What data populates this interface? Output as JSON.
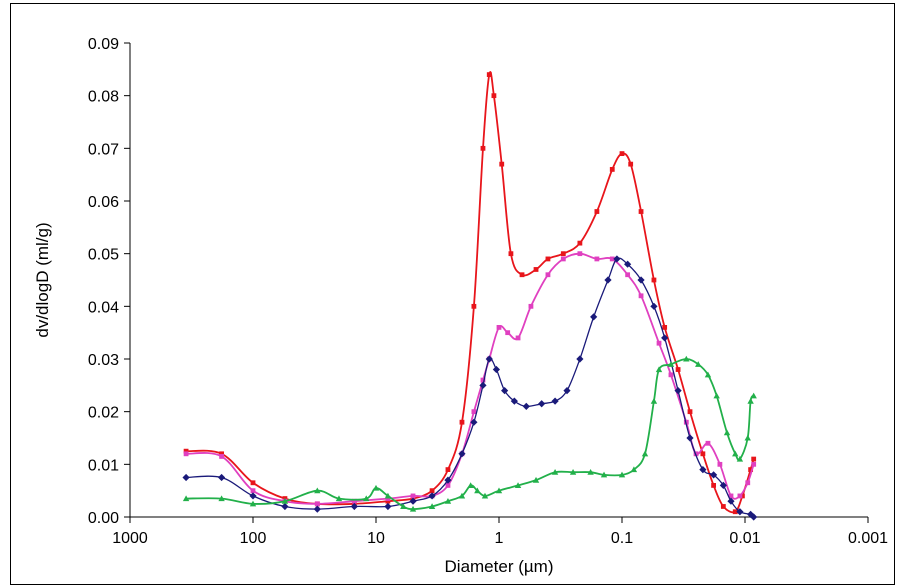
{
  "chart_data": {
    "type": "line",
    "title": "",
    "xlabel": "Diameter (µm)",
    "ylabel": "dv/dlogD (ml/g)",
    "x_scale": "log",
    "x_reversed": true,
    "xlim": [
      1000,
      0.001
    ],
    "ylim": [
      0,
      0.09
    ],
    "x_ticks": [
      1000,
      100,
      10,
      1,
      0.1,
      0.01,
      0.001
    ],
    "x_tick_labels": [
      "1000",
      "100",
      "10",
      "1",
      "0.1",
      "0.01",
      "0.001"
    ],
    "y_ticks": [
      0,
      0.01,
      0.02,
      0.03,
      0.04,
      0.05,
      0.06,
      0.07,
      0.08,
      0.09
    ],
    "y_tick_labels": [
      "0.00",
      "0.01",
      "0.02",
      "0.03",
      "0.04",
      "0.05",
      "0.06",
      "0.07",
      "0.08",
      "0.09"
    ],
    "grid": false,
    "legend": "none",
    "series": [
      {
        "color": "#e8151b",
        "marker": "square",
        "points": [
          [
            350,
            0.0125
          ],
          [
            180,
            0.012
          ],
          [
            100,
            0.0065
          ],
          [
            55,
            0.0035
          ],
          [
            30,
            0.0025
          ],
          [
            15,
            0.0025
          ],
          [
            8,
            0.003
          ],
          [
            5,
            0.0035
          ],
          [
            3.5,
            0.005
          ],
          [
            2.6,
            0.009
          ],
          [
            2.0,
            0.018
          ],
          [
            1.6,
            0.04
          ],
          [
            1.35,
            0.07
          ],
          [
            1.2,
            0.084
          ],
          [
            1.1,
            0.08
          ],
          [
            0.95,
            0.067
          ],
          [
            0.8,
            0.05
          ],
          [
            0.65,
            0.046
          ],
          [
            0.5,
            0.047
          ],
          [
            0.4,
            0.049
          ],
          [
            0.3,
            0.05
          ],
          [
            0.22,
            0.052
          ],
          [
            0.16,
            0.058
          ],
          [
            0.12,
            0.066
          ],
          [
            0.1,
            0.069
          ],
          [
            0.085,
            0.067
          ],
          [
            0.07,
            0.058
          ],
          [
            0.055,
            0.045
          ],
          [
            0.045,
            0.036
          ],
          [
            0.035,
            0.028
          ],
          [
            0.028,
            0.02
          ],
          [
            0.022,
            0.012
          ],
          [
            0.018,
            0.006
          ],
          [
            0.015,
            0.002
          ],
          [
            0.012,
            0.001
          ],
          [
            0.0105,
            0.004
          ],
          [
            0.009,
            0.009
          ],
          [
            0.0085,
            0.011
          ]
        ]
      },
      {
        "color": "#e040c0",
        "marker": "square",
        "points": [
          [
            350,
            0.012
          ],
          [
            180,
            0.0115
          ],
          [
            100,
            0.005
          ],
          [
            55,
            0.003
          ],
          [
            30,
            0.0025
          ],
          [
            15,
            0.003
          ],
          [
            8,
            0.0035
          ],
          [
            5,
            0.004
          ],
          [
            3.5,
            0.004
          ],
          [
            2.6,
            0.006
          ],
          [
            2.0,
            0.012
          ],
          [
            1.6,
            0.02
          ],
          [
            1.35,
            0.026
          ],
          [
            1.2,
            0.03
          ],
          [
            1.0,
            0.036
          ],
          [
            0.85,
            0.035
          ],
          [
            0.7,
            0.034
          ],
          [
            0.55,
            0.04
          ],
          [
            0.4,
            0.046
          ],
          [
            0.3,
            0.049
          ],
          [
            0.22,
            0.05
          ],
          [
            0.16,
            0.049
          ],
          [
            0.12,
            0.049
          ],
          [
            0.09,
            0.046
          ],
          [
            0.07,
            0.042
          ],
          [
            0.05,
            0.033
          ],
          [
            0.04,
            0.027
          ],
          [
            0.03,
            0.018
          ],
          [
            0.025,
            0.012
          ],
          [
            0.02,
            0.014
          ],
          [
            0.016,
            0.01
          ],
          [
            0.013,
            0.004
          ],
          [
            0.011,
            0.004
          ],
          [
            0.0095,
            0.0065
          ],
          [
            0.0085,
            0.01
          ]
        ]
      },
      {
        "color": "#1a1a7a",
        "marker": "diamond",
        "points": [
          [
            350,
            0.0075
          ],
          [
            180,
            0.0075
          ],
          [
            100,
            0.004
          ],
          [
            55,
            0.002
          ],
          [
            30,
            0.0015
          ],
          [
            15,
            0.002
          ],
          [
            8,
            0.002
          ],
          [
            5,
            0.003
          ],
          [
            3.5,
            0.004
          ],
          [
            2.6,
            0.007
          ],
          [
            2.0,
            0.012
          ],
          [
            1.6,
            0.018
          ],
          [
            1.35,
            0.025
          ],
          [
            1.2,
            0.03
          ],
          [
            1.05,
            0.028
          ],
          [
            0.9,
            0.024
          ],
          [
            0.75,
            0.022
          ],
          [
            0.6,
            0.021
          ],
          [
            0.45,
            0.0215
          ],
          [
            0.35,
            0.022
          ],
          [
            0.28,
            0.024
          ],
          [
            0.22,
            0.03
          ],
          [
            0.17,
            0.038
          ],
          [
            0.13,
            0.045
          ],
          [
            0.11,
            0.049
          ],
          [
            0.09,
            0.048
          ],
          [
            0.07,
            0.045
          ],
          [
            0.055,
            0.04
          ],
          [
            0.045,
            0.034
          ],
          [
            0.035,
            0.024
          ],
          [
            0.028,
            0.015
          ],
          [
            0.022,
            0.009
          ],
          [
            0.018,
            0.008
          ],
          [
            0.015,
            0.006
          ],
          [
            0.013,
            0.003
          ],
          [
            0.011,
            0.001
          ],
          [
            0.009,
            0.0005
          ],
          [
            0.0085,
            0.0
          ]
        ]
      },
      {
        "color": "#22b04a",
        "marker": "triangle",
        "points": [
          [
            350,
            0.0035
          ],
          [
            180,
            0.0035
          ],
          [
            100,
            0.0025
          ],
          [
            55,
            0.003
          ],
          [
            30,
            0.005
          ],
          [
            20,
            0.0035
          ],
          [
            12,
            0.0035
          ],
          [
            10,
            0.0055
          ],
          [
            8,
            0.004
          ],
          [
            6,
            0.002
          ],
          [
            5,
            0.0015
          ],
          [
            3.5,
            0.002
          ],
          [
            2.6,
            0.003
          ],
          [
            2.0,
            0.004
          ],
          [
            1.7,
            0.006
          ],
          [
            1.5,
            0.005
          ],
          [
            1.3,
            0.004
          ],
          [
            1.0,
            0.005
          ],
          [
            0.7,
            0.006
          ],
          [
            0.5,
            0.007
          ],
          [
            0.35,
            0.0085
          ],
          [
            0.25,
            0.0085
          ],
          [
            0.18,
            0.0085
          ],
          [
            0.14,
            0.008
          ],
          [
            0.1,
            0.008
          ],
          [
            0.08,
            0.009
          ],
          [
            0.065,
            0.012
          ],
          [
            0.055,
            0.022
          ],
          [
            0.05,
            0.028
          ],
          [
            0.04,
            0.029
          ],
          [
            0.03,
            0.03
          ],
          [
            0.024,
            0.029
          ],
          [
            0.02,
            0.027
          ],
          [
            0.017,
            0.023
          ],
          [
            0.014,
            0.016
          ],
          [
            0.012,
            0.012
          ],
          [
            0.011,
            0.011
          ],
          [
            0.0095,
            0.015
          ],
          [
            0.009,
            0.022
          ],
          [
            0.0085,
            0.023
          ]
        ]
      }
    ]
  }
}
